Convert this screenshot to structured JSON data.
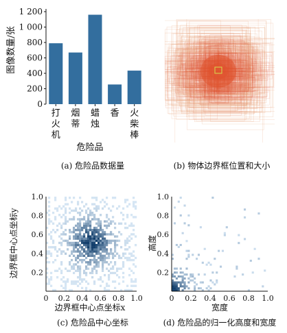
{
  "captions": {
    "a": "(a) 危险品数据量",
    "b": "(b) 物体边界框位置和大小",
    "c": "(c) 危险品中心坐标",
    "d": "(d) 危险品的归一化高度和宽度"
  },
  "chart_data": [
    {
      "id": "a",
      "type": "bar",
      "categories": [
        "打火机",
        "烟蒂",
        "蜡烛",
        "香",
        "火柴棒"
      ],
      "values": [
        790,
        670,
        1160,
        255,
        435
      ],
      "xlabel": "危险品",
      "ylabel": "图像数量/张",
      "ylim": [
        0,
        1200
      ],
      "yticks": [
        0,
        200,
        400,
        600,
        800,
        1000,
        1200
      ],
      "ytick_labels": [
        "0",
        "200",
        "400",
        "600",
        "800",
        "1 000",
        "1 200"
      ],
      "bar_color": "#336e9e",
      "grid": false
    },
    {
      "id": "b",
      "type": "heatmap",
      "description_kind": "overlaid bounding boxes",
      "colors": {
        "edge": "#e8a27c",
        "core": "#e0542e",
        "center": "#d8c84a"
      }
    },
    {
      "id": "c",
      "type": "heatmap",
      "xlabel": "边界框中心点坐标x",
      "ylabel": "边界框中心点坐标y",
      "xlim": [
        0,
        1
      ],
      "ylim": [
        0,
        1
      ],
      "xticks": [
        "0",
        "0.2",
        "0.4",
        "0.6",
        "0.8",
        "1.0"
      ],
      "yticks": [
        "0",
        "0.2",
        "0.4",
        "0.6",
        "0.8",
        "1.0"
      ],
      "center": [
        0.5,
        0.52
      ],
      "colors": {
        "low": "#d6e6f4",
        "high": "#123e6b"
      }
    },
    {
      "id": "d",
      "type": "heatmap",
      "xlabel": "宽度",
      "ylabel": "高度",
      "xlim": [
        0,
        1
      ],
      "ylim": [
        0,
        1
      ],
      "xticks": [
        "0",
        "0.2",
        "0.4",
        "0.6",
        "0.8",
        "1.0"
      ],
      "yticks": [
        "0.2",
        "0.4",
        "0.6",
        "0.8",
        "1.0"
      ],
      "mode": [
        0.05,
        0.05
      ],
      "colors": {
        "low": "#cfe1f1",
        "high": "#123e6b"
      }
    }
  ]
}
